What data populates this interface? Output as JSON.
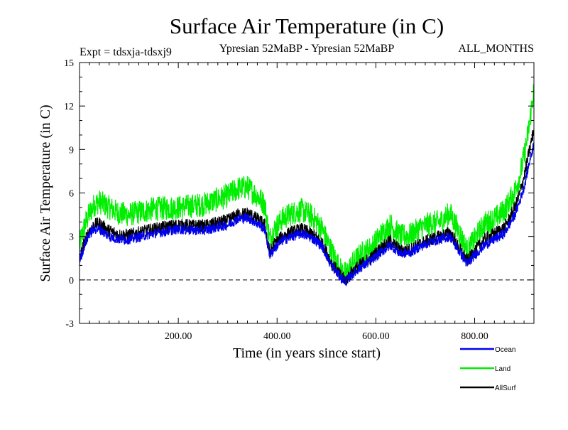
{
  "chart_data": {
    "type": "line",
    "title": "Surface Air Temperature (in C)",
    "subtitle_left": "Expt = tdsxja-tdsxj9",
    "subtitle_center": "Ypresian  52MaBP - Ypresian  52MaBP",
    "subtitle_right": "ALL_MONTHS",
    "xlabel": "Time (in years since start)",
    "ylabel": "Surface Air Temperature (in C)",
    "xlim": [
      0,
      920
    ],
    "ylim": [
      -3,
      15
    ],
    "xticks": [
      200,
      400,
      600,
      800
    ],
    "xtick_labels": [
      "200.00",
      "400.00",
      "600.00",
      "800.00"
    ],
    "yticks": [
      -3,
      0,
      3,
      6,
      9,
      12,
      15
    ],
    "ytick_labels": [
      "-3",
      "0",
      "3",
      "6",
      "9",
      "12",
      "15"
    ],
    "zero_line": 0,
    "series": [
      {
        "name": "Land",
        "color": "#00ee00",
        "noise": 0.85,
        "x": [
          0,
          10,
          20,
          30,
          40,
          60,
          80,
          100,
          150,
          200,
          250,
          300,
          320,
          340,
          360,
          375,
          385,
          395,
          410,
          430,
          450,
          470,
          490,
          510,
          530,
          540,
          550,
          570,
          590,
          610,
          630,
          650,
          670,
          690,
          710,
          730,
          750,
          770,
          785,
          800,
          820,
          840,
          860,
          870,
          880,
          890,
          900,
          910,
          920
        ],
        "y": [
          2.4,
          3.7,
          4.6,
          5.2,
          5.4,
          5.0,
          4.6,
          4.5,
          4.9,
          5.0,
          5.2,
          5.8,
          6.3,
          6.4,
          5.8,
          5.2,
          2.8,
          3.5,
          4.2,
          4.6,
          4.8,
          4.4,
          3.6,
          2.0,
          0.6,
          0.4,
          1.0,
          1.8,
          2.2,
          3.1,
          3.8,
          3.0,
          3.1,
          3.6,
          3.9,
          4.0,
          4.6,
          3.2,
          2.0,
          2.8,
          3.9,
          4.2,
          4.8,
          5.4,
          6.0,
          7.0,
          8.5,
          10.5,
          13.2
        ]
      },
      {
        "name": "AllSurf",
        "color": "#000000",
        "noise": 0.45,
        "x": [
          0,
          10,
          20,
          30,
          40,
          60,
          80,
          100,
          150,
          200,
          250,
          300,
          320,
          340,
          360,
          375,
          385,
          395,
          410,
          430,
          450,
          470,
          490,
          510,
          530,
          540,
          550,
          570,
          590,
          610,
          630,
          650,
          670,
          690,
          710,
          730,
          750,
          770,
          785,
          800,
          820,
          840,
          860,
          870,
          880,
          890,
          900,
          910,
          920
        ],
        "y": [
          1.5,
          2.6,
          3.4,
          3.8,
          3.9,
          3.4,
          3.1,
          3.1,
          3.5,
          3.8,
          3.7,
          4.1,
          4.5,
          4.6,
          4.2,
          3.8,
          1.9,
          2.5,
          3.0,
          3.3,
          3.5,
          3.2,
          2.6,
          1.2,
          0.2,
          0.0,
          0.5,
          1.1,
          1.5,
          2.2,
          2.7,
          2.0,
          2.1,
          2.5,
          2.8,
          3.0,
          3.3,
          2.1,
          1.3,
          2.0,
          2.8,
          3.2,
          3.6,
          4.2,
          4.9,
          5.8,
          7.1,
          8.8,
          10.4
        ]
      },
      {
        "name": "Ocean",
        "color": "#0000ee",
        "noise": 0.35,
        "x": [
          0,
          10,
          20,
          30,
          40,
          60,
          80,
          100,
          150,
          200,
          250,
          300,
          320,
          340,
          360,
          375,
          385,
          395,
          410,
          430,
          450,
          470,
          490,
          510,
          530,
          540,
          550,
          570,
          590,
          610,
          630,
          650,
          670,
          690,
          710,
          730,
          750,
          770,
          785,
          800,
          820,
          840,
          860,
          870,
          880,
          890,
          900,
          910,
          920
        ],
        "y": [
          1.3,
          2.4,
          3.2,
          3.5,
          3.5,
          3.0,
          2.8,
          2.8,
          3.2,
          3.5,
          3.4,
          3.8,
          4.2,
          4.3,
          3.9,
          3.5,
          1.7,
          2.2,
          2.7,
          3.0,
          3.2,
          2.9,
          2.4,
          1.0,
          0.1,
          -0.1,
          0.3,
          0.9,
          1.3,
          1.9,
          2.4,
          1.8,
          1.9,
          2.3,
          2.6,
          2.8,
          3.0,
          1.9,
          1.1,
          1.7,
          2.4,
          2.8,
          3.2,
          3.8,
          4.4,
          5.3,
          6.4,
          8.0,
          9.4
        ]
      }
    ],
    "legend": [
      {
        "name": "Ocean",
        "color": "#0000ee"
      },
      {
        "name": "Land",
        "color": "#00ee00"
      },
      {
        "name": "AllSurf",
        "color": "#000000"
      }
    ]
  }
}
